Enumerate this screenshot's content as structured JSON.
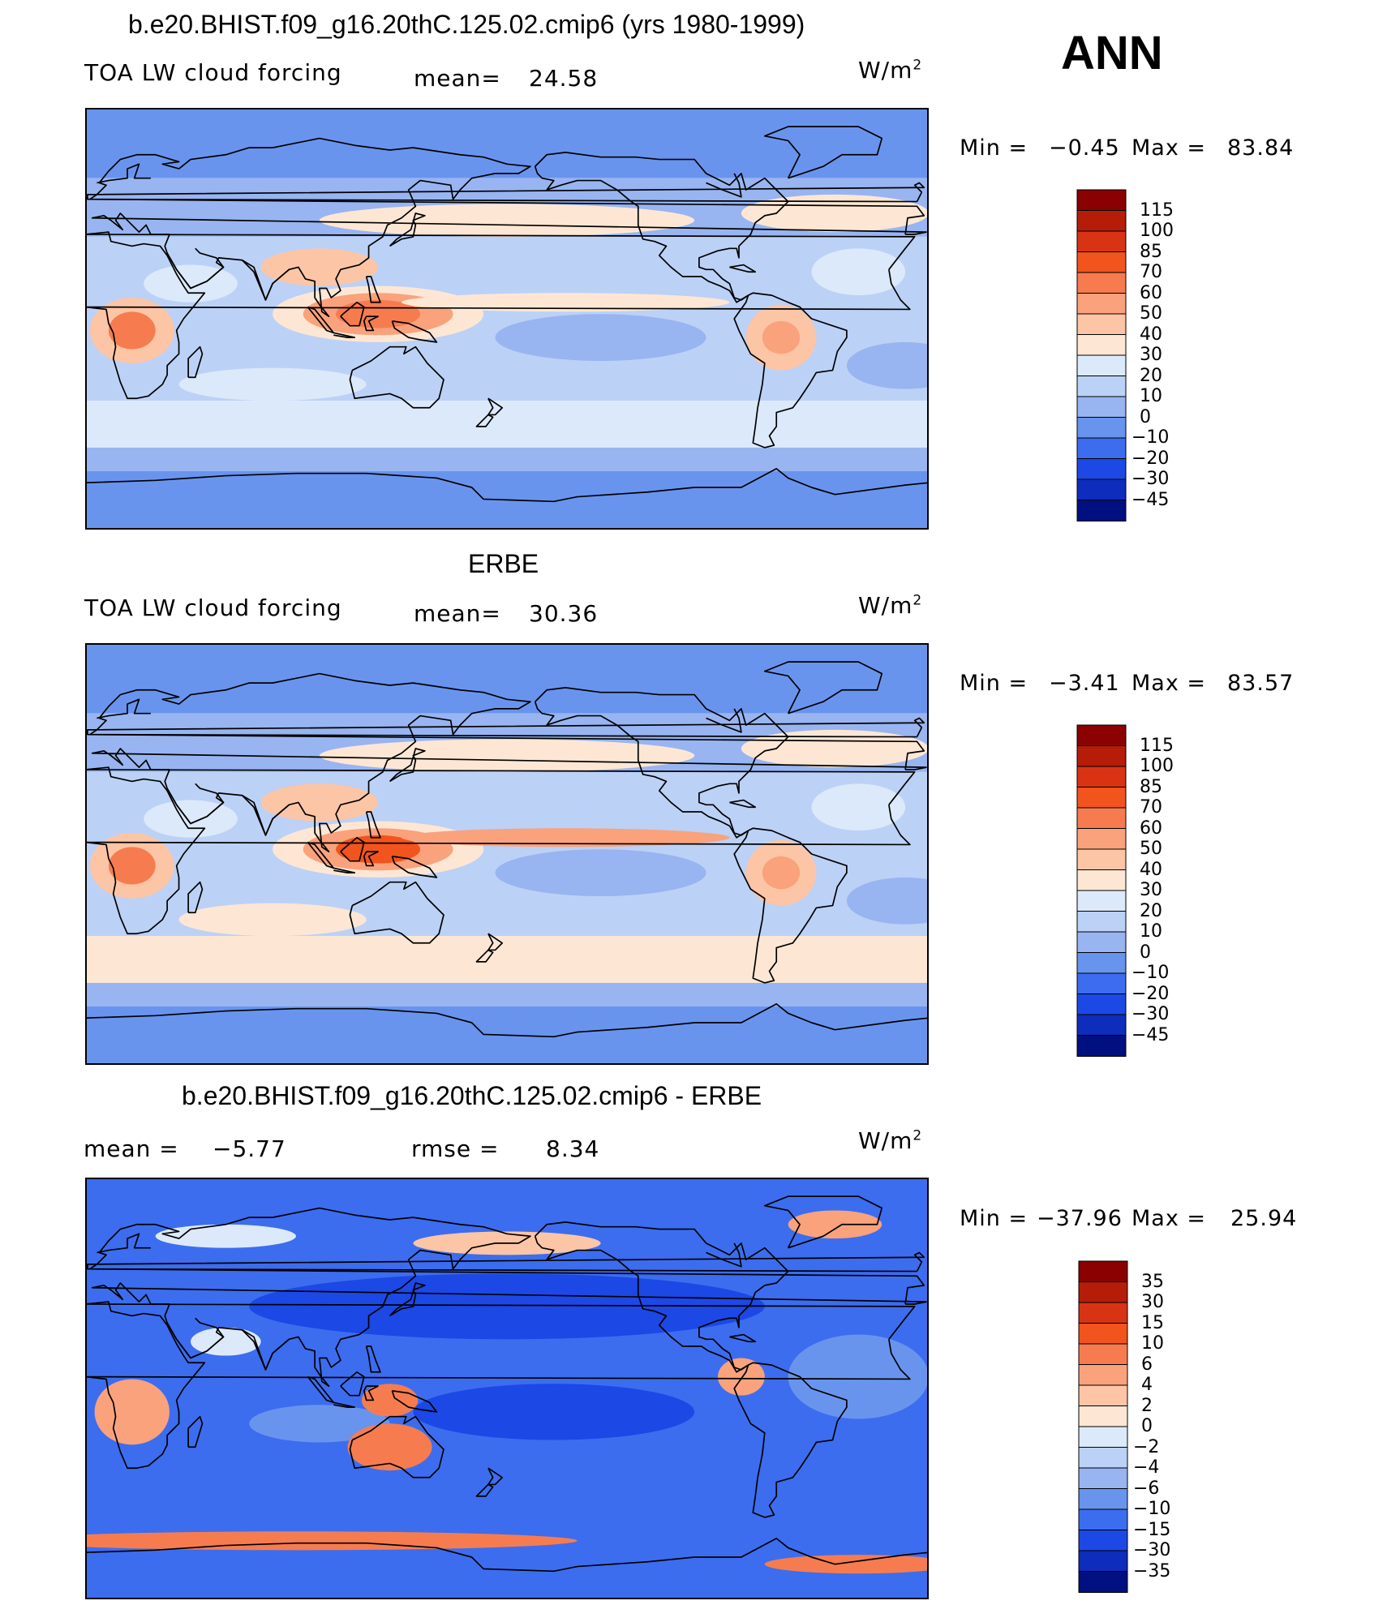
{
  "season": "ANN",
  "panels": [
    {
      "title": "b.e20.BHIST.f09_g16.20thC.125.02.cmip6 (yrs 1980-1999)",
      "left_label": "TOA LW cloud forcing",
      "mean_label": "mean=",
      "mean_value": "24.58",
      "units": "W/m",
      "units_sup": "2",
      "min_label": "Min =",
      "min_value": "−0.45",
      "max_label": "Max =",
      "max_value": "83.84",
      "colorbar": {
        "labels": [
          "115",
          "100",
          "85",
          "70",
          "60",
          "50",
          "40",
          "30",
          "20",
          "10",
          "0",
          "−10",
          "−20",
          "−30",
          "−45"
        ],
        "colors": [
          "#8b0000",
          "#b51d08",
          "#d83414",
          "#f2541e",
          "#f67c4f",
          "#f9a27c",
          "#fcc5a6",
          "#fde7d4",
          "#dce9fa",
          "#bcd1f6",
          "#98b5f1",
          "#6994ee",
          "#3c6def",
          "#1c48e6",
          "#0e2dbd",
          "#001080"
        ]
      }
    },
    {
      "title": "ERBE",
      "left_label": "TOA LW cloud forcing",
      "mean_label": "mean=",
      "mean_value": "30.36",
      "units": "W/m",
      "units_sup": "2",
      "min_label": "Min =",
      "min_value": "−3.41",
      "max_label": "Max =",
      "max_value": "83.57",
      "colorbar": {
        "labels": [
          "115",
          "100",
          "85",
          "70",
          "60",
          "50",
          "40",
          "30",
          "20",
          "10",
          "0",
          "−10",
          "−20",
          "−30",
          "−45"
        ],
        "colors": [
          "#8b0000",
          "#b51d08",
          "#d83414",
          "#f2541e",
          "#f67c4f",
          "#f9a27c",
          "#fcc5a6",
          "#fde7d4",
          "#dce9fa",
          "#bcd1f6",
          "#98b5f1",
          "#6994ee",
          "#3c6def",
          "#1c48e6",
          "#0e2dbd",
          "#001080"
        ]
      }
    },
    {
      "title": "b.e20.BHIST.f09_g16.20thC.125.02.cmip6 - ERBE",
      "mean_label": "mean =",
      "mean_value": "−5.77",
      "rmse_label": "rmse =",
      "rmse_value": "8.34",
      "units": "W/m",
      "units_sup": "2",
      "min_label": "Min =",
      "min_value": "−37.96",
      "max_label": "Max =",
      "max_value": "25.94",
      "colorbar": {
        "labels": [
          "35",
          "30",
          "15",
          "10",
          "6",
          "4",
          "2",
          "0",
          "−2",
          "−4",
          "−6",
          "−10",
          "−15",
          "−30",
          "−35"
        ],
        "colors": [
          "#8b0000",
          "#b51d08",
          "#d83414",
          "#f2541e",
          "#f67c4f",
          "#f9a27c",
          "#fcc5a6",
          "#fde7d4",
          "#dce9fa",
          "#bcd1f6",
          "#98b5f1",
          "#6994ee",
          "#3c6def",
          "#1c48e6",
          "#0e2dbd",
          "#001080"
        ]
      }
    }
  ]
}
